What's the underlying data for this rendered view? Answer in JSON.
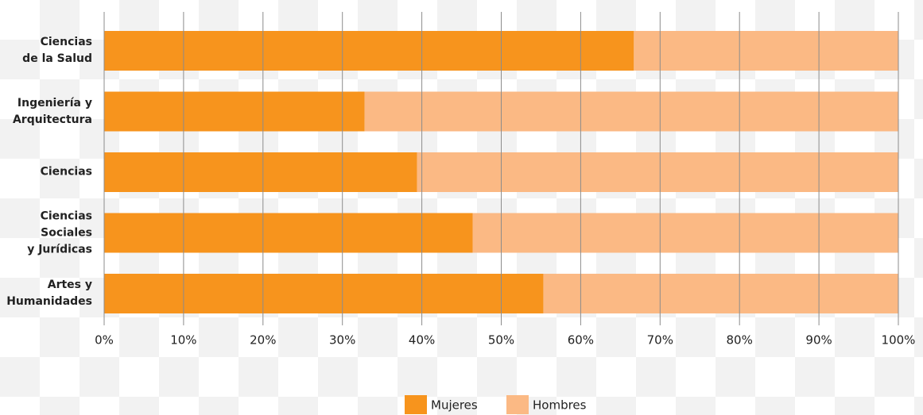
{
  "chart_data": {
    "type": "bar",
    "orientation": "horizontal",
    "stacked": true,
    "categories": [
      "Ciencias\nde la Salud",
      "Ingeniería y\nArquitectura",
      "Ciencias",
      "Ciencias\nSociales\ny Jurídicas",
      "Artes y\nHumanidades"
    ],
    "series": [
      {
        "name": "Mujeres",
        "color": "#f7941d",
        "values": [
          66.7,
          32.8,
          39.4,
          46.4,
          55.3
        ]
      },
      {
        "name": "Hombres",
        "color": "#fbb984",
        "values": [
          33.3,
          67.2,
          60.6,
          53.6,
          44.7
        ]
      }
    ],
    "xlim": [
      0,
      100
    ],
    "xticks": [
      {
        "value": 0,
        "label": "0%"
      },
      {
        "value": 10,
        "label": "10%"
      },
      {
        "value": 20,
        "label": "20%"
      },
      {
        "value": 30,
        "label": "30%"
      },
      {
        "value": 40,
        "label": "40%"
      },
      {
        "value": 50,
        "label": "50%"
      },
      {
        "value": 60,
        "label": "60%"
      },
      {
        "value": 70,
        "label": "70%"
      },
      {
        "value": 80,
        "label": "80%"
      },
      {
        "value": 90,
        "label": "90%"
      },
      {
        "value": 100,
        "label": "100%"
      }
    ],
    "grid": true,
    "legend": "bottom"
  }
}
